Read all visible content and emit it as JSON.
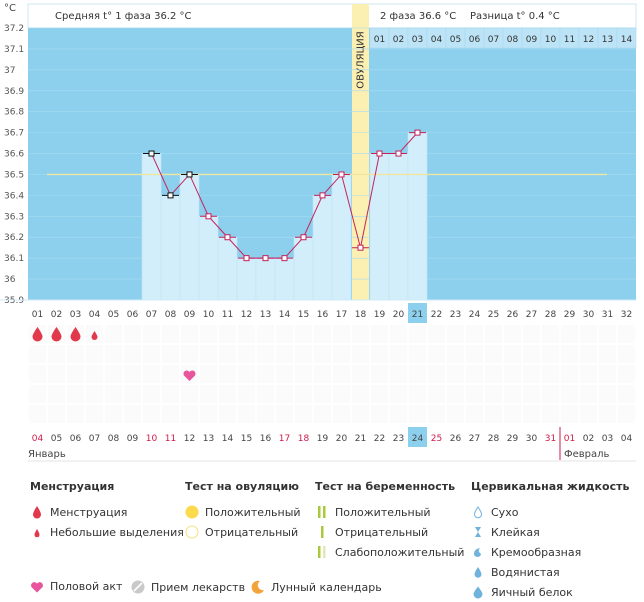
{
  "chart_data": {
    "type": "line",
    "header": {
      "unit": "°C",
      "phase1": "Средняя t° 1 фаза 36.2 °C",
      "phase2": "2 фаза 36.6 °C",
      "diff": "Разница t° 0.4 °C"
    },
    "ylim": [
      35.9,
      37.2
    ],
    "yticks": [
      "37.2",
      "37.1",
      "37",
      "36.9",
      "36.8",
      "36.7",
      "36.6",
      "36.5",
      "36.4",
      "36.3",
      "36.2",
      "36.1",
      "36",
      "35.9"
    ],
    "cycle_days": [
      "01",
      "02",
      "03",
      "04",
      "05",
      "06",
      "07",
      "08",
      "09",
      "10",
      "11",
      "12",
      "13",
      "14",
      "15",
      "16",
      "17",
      "18",
      "19",
      "20",
      "21",
      "22",
      "23",
      "24",
      "25",
      "26",
      "27",
      "28",
      "29",
      "30",
      "31",
      "32"
    ],
    "highlight_day_index": 20,
    "post_ovulation_labels": [
      "01",
      "02",
      "03",
      "04",
      "05",
      "06",
      "07",
      "08",
      "09",
      "10",
      "11",
      "12",
      "13",
      "14"
    ],
    "ovulation": {
      "day": 18,
      "label": "ОВУЛЯЦИЯ"
    },
    "coverline": 36.5,
    "temperatures": [
      {
        "day": 7,
        "t": 36.6
      },
      {
        "day": 8,
        "t": 36.4
      },
      {
        "day": 9,
        "t": 36.5
      },
      {
        "day": 10,
        "t": 36.3
      },
      {
        "day": 11,
        "t": 36.2
      },
      {
        "day": 12,
        "t": 36.1
      },
      {
        "day": 13,
        "t": 36.1
      },
      {
        "day": 14,
        "t": 36.1
      },
      {
        "day": 15,
        "t": 36.2
      },
      {
        "day": 16,
        "t": 36.4
      },
      {
        "day": 17,
        "t": 36.5
      },
      {
        "day": 18,
        "t": 36.15
      },
      {
        "day": 19,
        "t": 36.6
      },
      {
        "day": 20,
        "t": 36.6
      },
      {
        "day": 21,
        "t": 36.7
      }
    ],
    "black_marker_days": [
      7,
      8,
      9
    ],
    "menstruation": [
      {
        "day": 1,
        "size": "large"
      },
      {
        "day": 2,
        "size": "large"
      },
      {
        "day": 3,
        "size": "large"
      },
      {
        "day": 4,
        "size": "small"
      }
    ],
    "intercourse_days": [
      9
    ],
    "calendar_dates": [
      {
        "d": "04",
        "red": true
      },
      {
        "d": "05",
        "red": false
      },
      {
        "d": "06",
        "red": false
      },
      {
        "d": "07",
        "red": false
      },
      {
        "d": "08",
        "red": false
      },
      {
        "d": "09",
        "red": false
      },
      {
        "d": "10",
        "red": true
      },
      {
        "d": "11",
        "red": true
      },
      {
        "d": "12",
        "red": false
      },
      {
        "d": "13",
        "red": false
      },
      {
        "d": "14",
        "red": false
      },
      {
        "d": "15",
        "red": false
      },
      {
        "d": "16",
        "red": false
      },
      {
        "d": "17",
        "red": true
      },
      {
        "d": "18",
        "red": true
      },
      {
        "d": "19",
        "red": false
      },
      {
        "d": "20",
        "red": false
      },
      {
        "d": "21",
        "red": false
      },
      {
        "d": "22",
        "red": false
      },
      {
        "d": "23",
        "red": false
      },
      {
        "d": "24",
        "red": false
      },
      {
        "d": "25",
        "red": true
      },
      {
        "d": "26",
        "red": false
      },
      {
        "d": "27",
        "red": false
      },
      {
        "d": "28",
        "red": false
      },
      {
        "d": "29",
        "red": false
      },
      {
        "d": "30",
        "red": false
      },
      {
        "d": "31",
        "red": true
      },
      {
        "d": "01",
        "red": true
      },
      {
        "d": "02",
        "red": false
      },
      {
        "d": "03",
        "red": false
      },
      {
        "d": "04",
        "red": false
      }
    ],
    "months": {
      "first": "Январь",
      "second": "Февраль"
    },
    "colors": {
      "sky": "#8dd0ee",
      "bar": "#d3eefb",
      "bar_edge": "#bfe3f5",
      "ovulation": "#fcefb2",
      "line": "#c4225a",
      "coverline": "#efe7a0",
      "drop": "#e2384c",
      "heart": "#e8559c",
      "highlight": "#8dd0ee"
    }
  },
  "legend": {
    "menstruation": {
      "title": "Менструация",
      "items": [
        "Менструация",
        "Небольшие выделения"
      ]
    },
    "ovulation_test": {
      "title": "Тест на овуляцию",
      "items": [
        "Положительный",
        "Отрицательный"
      ]
    },
    "pregnancy_test": {
      "title": "Тест на беременность",
      "items": [
        "Положительный",
        "Отрицательный",
        "Слабоположительный"
      ]
    },
    "cervical": {
      "title": "Цервикальная жидкость",
      "items": [
        "Сухо",
        "Клейкая",
        "Кремообразная",
        "Водянистая",
        "Яичный белок"
      ]
    }
  },
  "bottom_legend": [
    "Половой акт",
    "Прием лекарств",
    "Лунный календарь"
  ]
}
